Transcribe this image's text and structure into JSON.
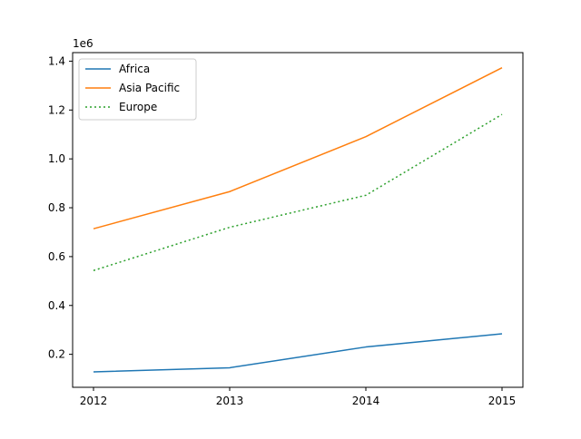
{
  "chart_data": {
    "type": "line",
    "x": [
      "2012",
      "2013",
      "2014",
      "2015"
    ],
    "x_ticks": [
      "2012",
      "2013",
      "2014",
      "2015"
    ],
    "y_ticks": [
      "0.2",
      "0.4",
      "0.6",
      "0.8",
      "1.0",
      "1.2",
      "1.4"
    ],
    "y_tick_values": [
      0.2,
      0.4,
      0.6,
      0.8,
      1.0,
      1.2,
      1.4
    ],
    "y_multiplier_label": "1e6",
    "ylim": [
      0.065,
      1.435
    ],
    "series": [
      {
        "name": "Africa",
        "values": [
          0.128,
          0.145,
          0.23,
          0.284
        ],
        "color": "#1f77b4",
        "dash": "solid"
      },
      {
        "name": "Asia Pacific",
        "values": [
          0.714,
          0.866,
          1.091,
          1.373
        ],
        "color": "#ff7f0e",
        "dash": "solid"
      },
      {
        "name": "Europe",
        "values": [
          0.543,
          0.72,
          0.851,
          1.182
        ],
        "color": "#2ca02c",
        "dash": "dotted"
      }
    ],
    "legend": {
      "placement": "top-left"
    },
    "grid": false
  }
}
